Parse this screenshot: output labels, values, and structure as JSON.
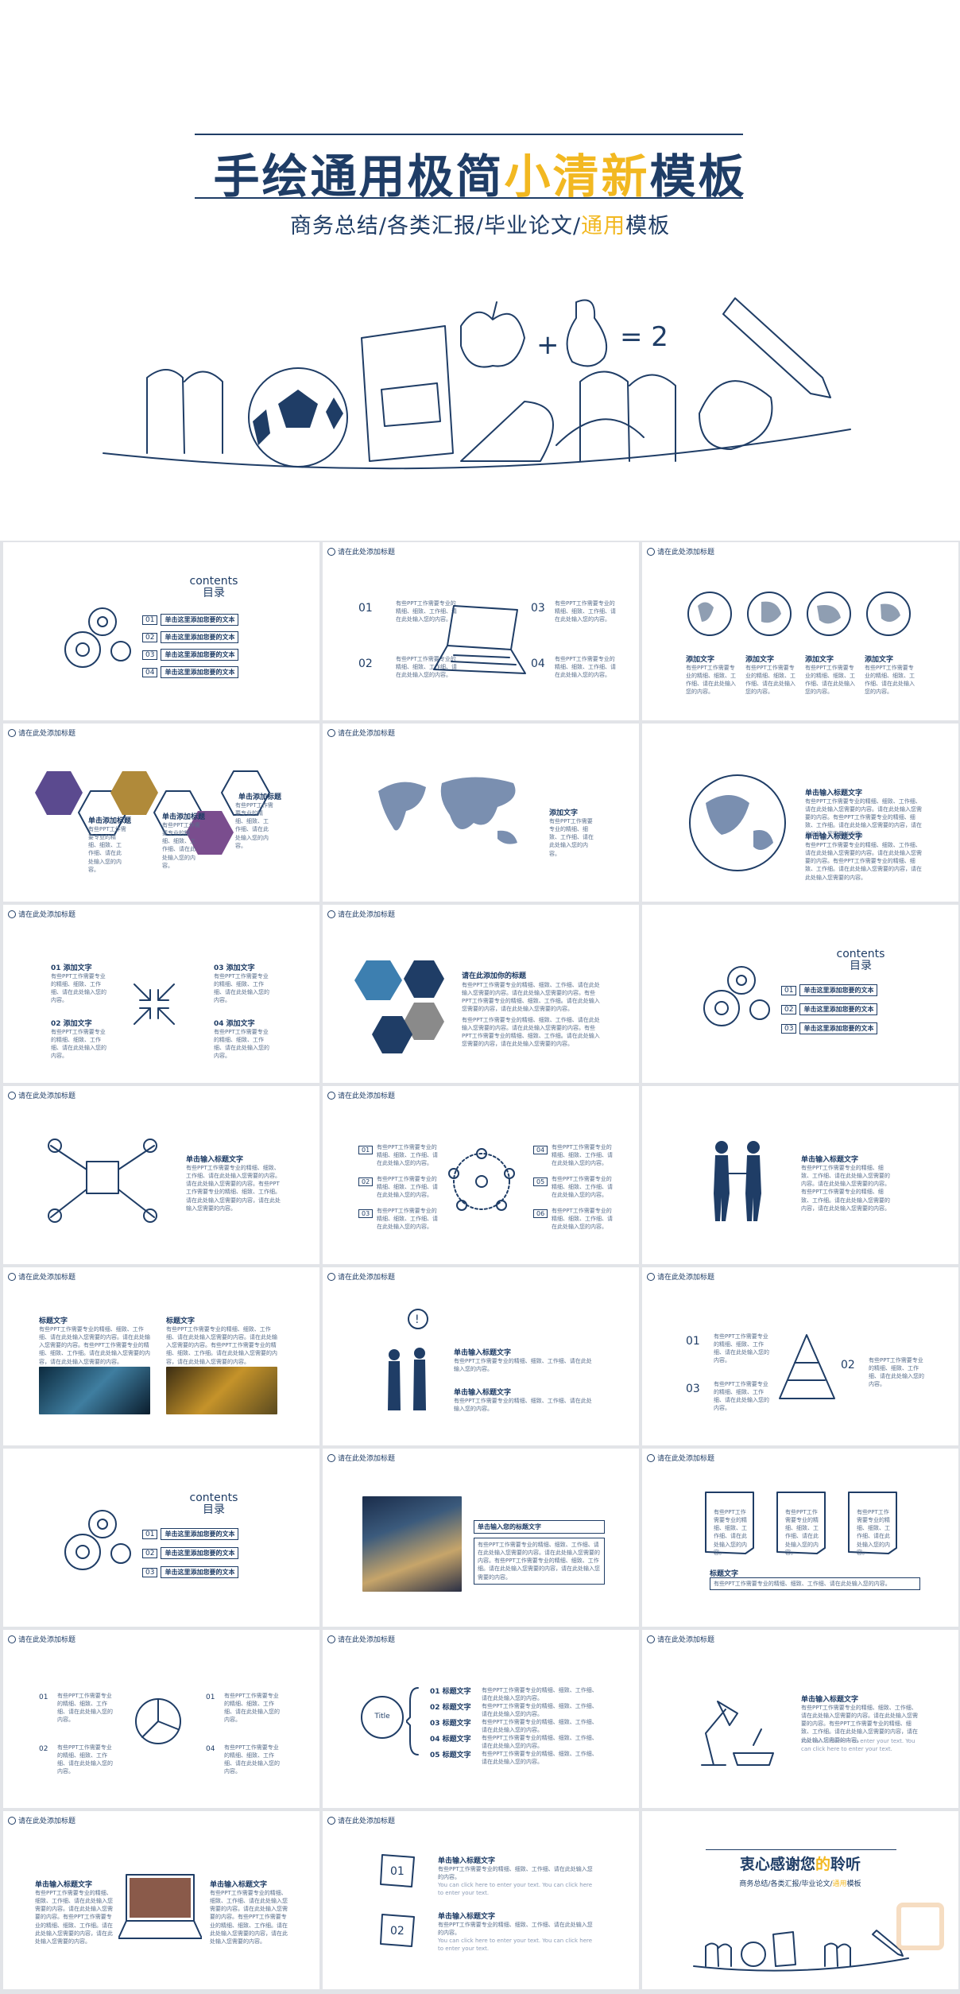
{
  "hero": {
    "title_main": "手绘通用极简",
    "title_accent": "小清新",
    "title_end": "模板",
    "subtitle_main": "商务总结/各类汇报/毕业论文/",
    "subtitle_accent": "通用",
    "subtitle_end": "模板"
  },
  "common": {
    "slide_header": "请在此处添加标题",
    "body_short": "有些PPT工作需要专业的精细、细致、工作细、请在此处输入您的内容。",
    "body_long": "有些PPT工作需要专业的精细、细致、工作细、请在此处输入您需要的内容。请在此处输入您需要的内容。有些PPT工作需要专业的精细、细致、工作细。请在此处输入您需要的内容，请在此处输入您需要的内容。",
    "body_en": "You can click here to enter your text. You can click here to enter your text.",
    "add_text": "添加文字",
    "title_text": "标题文字",
    "input_title": "单击输入标题文字",
    "add_title": "单击添加标题"
  },
  "toc": {
    "heading_en": "contents",
    "heading_cn": "目录",
    "item": "单击这里添加您要的文本",
    "nums": [
      "01",
      "02",
      "03",
      "04"
    ]
  },
  "slides": {
    "s5_title": "添加文字",
    "s8_title": "请在此添加你的标题",
    "s20_title": "单击输入您的标题文字",
    "s21_label": "标题文字",
    "s22_circle": "Title",
    "s22_items": [
      "01 标题文字",
      "02 标题文字",
      "03 标题文字",
      "04 标题文字",
      "05 标题文字"
    ],
    "s23_title": "单击输入标题文字",
    "thanks_main": "衷心感谢您",
    "thanks_accent": "的",
    "thanks_end": "聆听",
    "thanks_sub_main": "商务总结/各类汇报/毕业论文/",
    "thanks_sub_accent": "通用",
    "thanks_sub_end": "模板"
  },
  "colors": {
    "navy": "#1f3d66",
    "accent": "#f2b821",
    "background": "#e2e4e8"
  }
}
